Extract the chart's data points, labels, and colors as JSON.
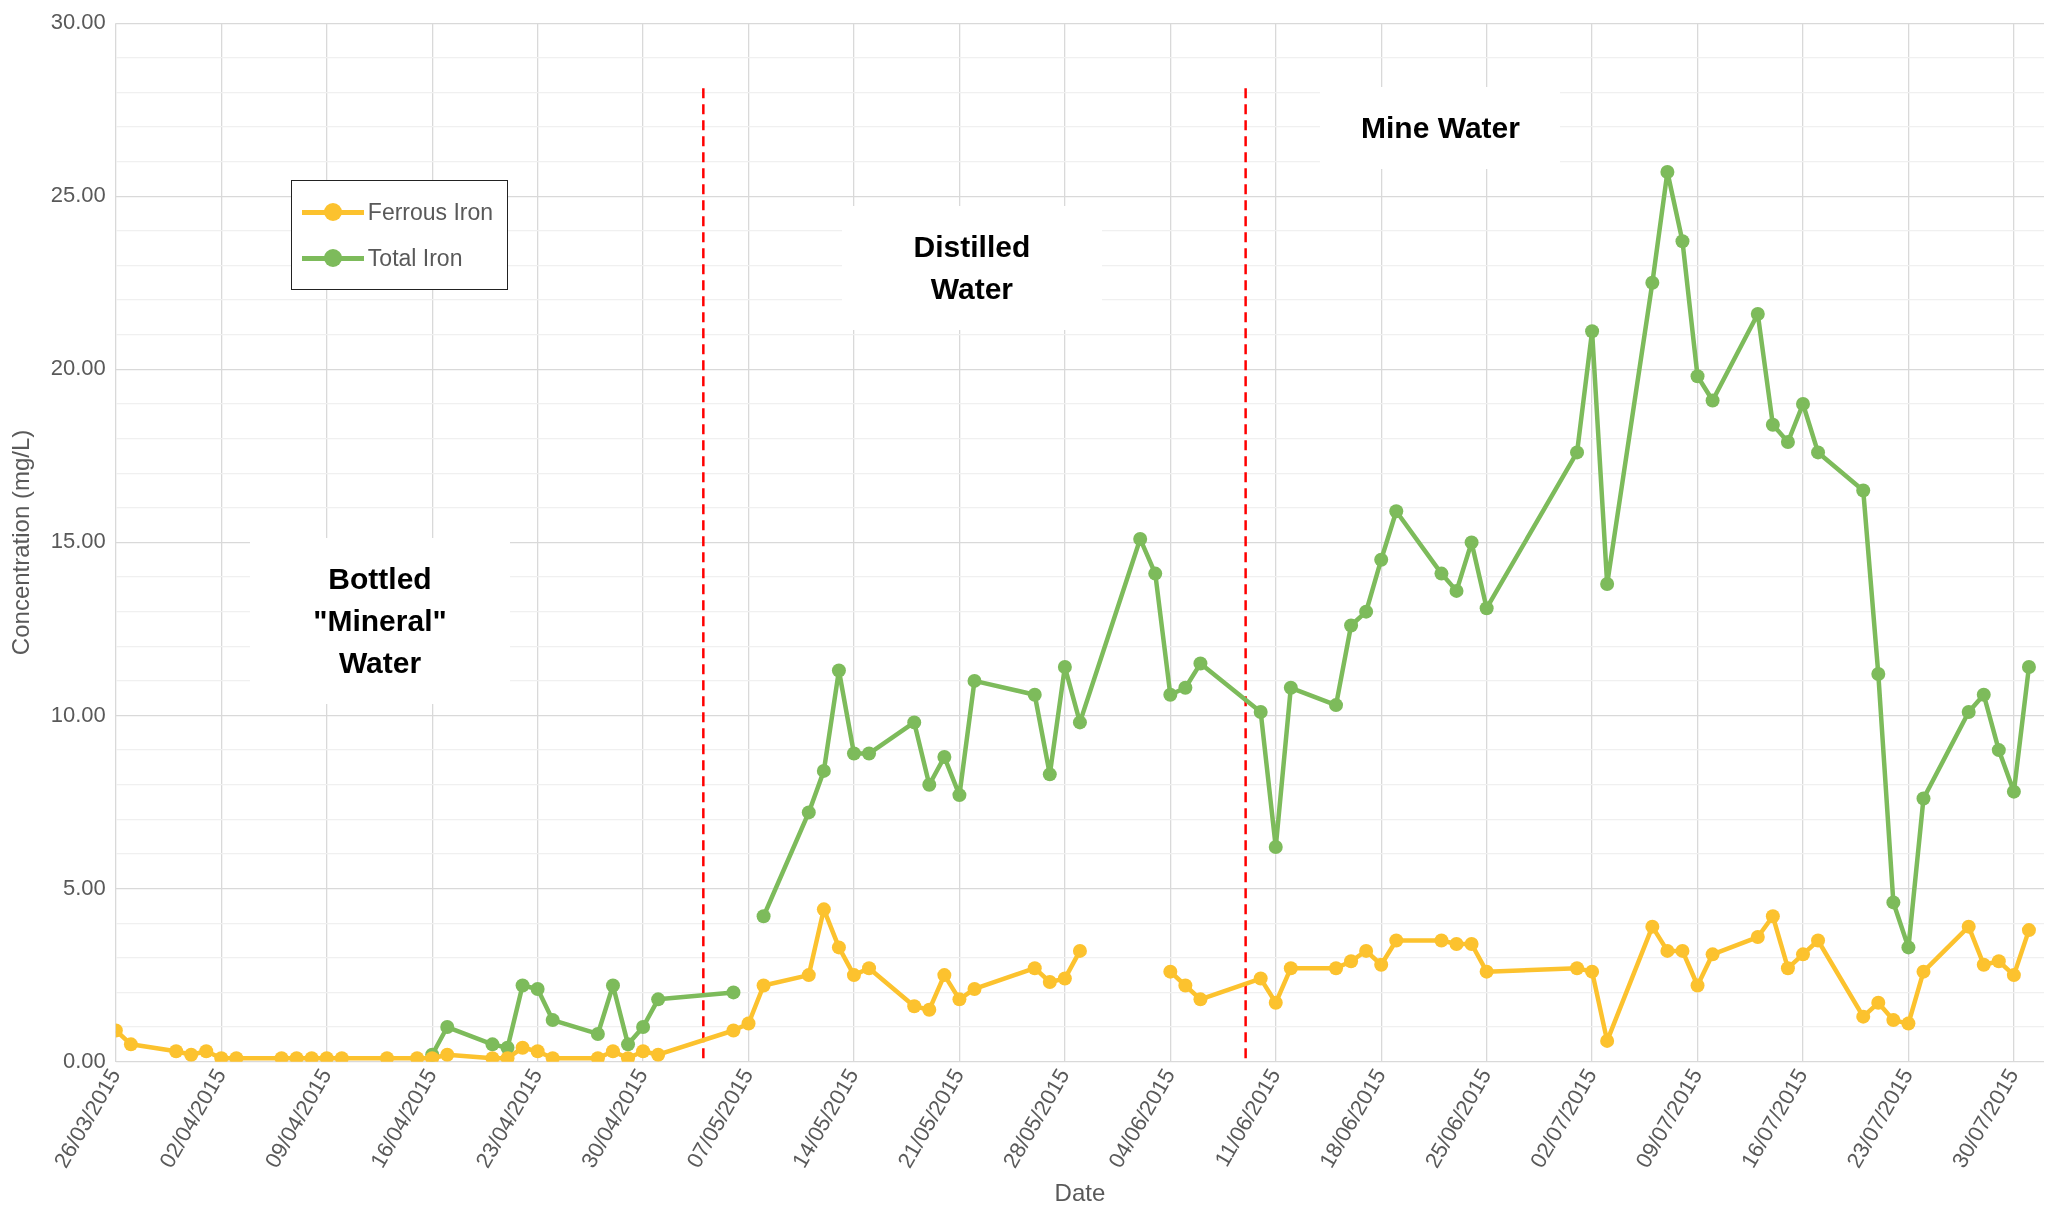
{
  "chart_data": {
    "type": "line",
    "xlabel": "Date",
    "ylabel": "Concentration (mg/L)",
    "xlim": [
      "2015-03-26",
      "2015-08-01"
    ],
    "xticks": [
      {
        "value": "2015-03-26",
        "label": "26/03/2015"
      },
      {
        "value": "2015-04-02",
        "label": "02/04/2015"
      },
      {
        "value": "2015-04-09",
        "label": "09/04/2015"
      },
      {
        "value": "2015-04-16",
        "label": "16/04/2015"
      },
      {
        "value": "2015-04-23",
        "label": "23/04/2015"
      },
      {
        "value": "2015-04-30",
        "label": "30/04/2015"
      },
      {
        "value": "2015-05-07",
        "label": "07/05/2015"
      },
      {
        "value": "2015-05-14",
        "label": "14/05/2015"
      },
      {
        "value": "2015-05-21",
        "label": "21/05/2015"
      },
      {
        "value": "2015-05-28",
        "label": "28/05/2015"
      },
      {
        "value": "2015-06-04",
        "label": "04/06/2015"
      },
      {
        "value": "2015-06-11",
        "label": "11/06/2015"
      },
      {
        "value": "2015-06-18",
        "label": "18/06/2015"
      },
      {
        "value": "2015-06-25",
        "label": "25/06/2015"
      },
      {
        "value": "2015-07-02",
        "label": "02/07/2015"
      },
      {
        "value": "2015-07-09",
        "label": "09/07/2015"
      },
      {
        "value": "2015-07-16",
        "label": "16/07/2015"
      },
      {
        "value": "2015-07-23",
        "label": "23/07/2015"
      },
      {
        "value": "2015-07-30",
        "label": "30/07/2015"
      }
    ],
    "ylim": [
      0,
      30
    ],
    "yticks": [
      {
        "value": 0,
        "label": "0.00"
      },
      {
        "value": 1,
        "label": null
      },
      {
        "value": 2,
        "label": null
      },
      {
        "value": 3,
        "label": null
      },
      {
        "value": 4,
        "label": null
      },
      {
        "value": 5,
        "label": "5.00"
      },
      {
        "value": 6,
        "label": null
      },
      {
        "value": 7,
        "label": null
      },
      {
        "value": 8,
        "label": null
      },
      {
        "value": 9,
        "label": null
      },
      {
        "value": 10,
        "label": "10.00"
      },
      {
        "value": 11,
        "label": null
      },
      {
        "value": 12,
        "label": null
      },
      {
        "value": 13,
        "label": null
      },
      {
        "value": 14,
        "label": null
      },
      {
        "value": 15,
        "label": "15.00"
      },
      {
        "value": 16,
        "label": null
      },
      {
        "value": 17,
        "label": null
      },
      {
        "value": 18,
        "label": null
      },
      {
        "value": 19,
        "label": null
      },
      {
        "value": 20,
        "label": "20.00"
      },
      {
        "value": 21,
        "label": null
      },
      {
        "value": 22,
        "label": null
      },
      {
        "value": 23,
        "label": null
      },
      {
        "value": 24,
        "label": null
      },
      {
        "value": 25,
        "label": "25.00"
      },
      {
        "value": 26,
        "label": null
      },
      {
        "value": 27,
        "label": null
      },
      {
        "value": 28,
        "label": null
      },
      {
        "value": 29,
        "label": null
      },
      {
        "value": 30,
        "label": "30.00"
      }
    ],
    "grid": true,
    "legend": "top left",
    "marker": "circle",
    "line_style": "solid",
    "ref_lines": [
      {
        "axis": "x",
        "value": "2015-05-04",
        "color": "#ff0000",
        "line_style": "dashed"
      },
      {
        "axis": "x",
        "value": "2015-06-09",
        "color": "#ff0000",
        "line_style": "dashed"
      }
    ],
    "annotations": [
      "Bottled\n\"Mineral\"\nWater",
      "Distilled\nWater",
      "Mine Water"
    ],
    "series": [
      {
        "name": "Ferrous Iron",
        "color": "#fcc22e",
        "x": [
          "2015-03-26",
          "2015-03-27",
          "2015-03-30",
          "2015-03-31",
          "2015-04-01",
          "2015-04-02",
          "2015-04-03",
          "2015-04-06",
          "2015-04-07",
          "2015-04-08",
          "2015-04-09",
          "2015-04-10",
          "2015-04-13",
          "2015-04-15",
          "2015-04-16",
          "2015-04-17",
          "2015-04-20",
          "2015-04-21",
          "2015-04-22",
          "2015-04-23",
          "2015-04-24",
          "2015-04-27",
          "2015-04-28",
          "2015-04-29",
          "2015-04-30",
          "2015-05-01",
          "2015-05-06",
          "2015-05-07",
          "2015-05-08",
          "2015-05-11",
          "2015-05-12",
          "2015-05-13",
          "2015-05-14",
          "2015-05-15",
          "2015-05-18",
          "2015-05-19",
          "2015-05-20",
          "2015-05-21",
          "2015-05-22",
          "2015-05-26",
          "2015-05-27",
          "2015-05-28",
          "2015-05-29",
          "2015-06-02",
          "2015-06-04",
          "2015-06-05",
          "2015-06-06",
          "2015-06-10",
          "2015-06-11",
          "2015-06-12",
          "2015-06-15",
          "2015-06-16",
          "2015-06-17",
          "2015-06-18",
          "2015-06-19",
          "2015-06-22",
          "2015-06-23",
          "2015-06-24",
          "2015-06-25",
          "2015-07-01",
          "2015-07-02",
          "2015-07-03",
          "2015-07-06",
          "2015-07-07",
          "2015-07-08",
          "2015-07-09",
          "2015-07-10",
          "2015-07-13",
          "2015-07-14",
          "2015-07-15",
          "2015-07-16",
          "2015-07-17",
          "2015-07-20",
          "2015-07-21",
          "2015-07-22",
          "2015-07-23",
          "2015-07-24",
          "2015-07-27",
          "2015-07-28",
          "2015-07-29",
          "2015-07-30",
          "2015-07-31"
        ],
        "values": [
          0.9,
          0.5,
          0.3,
          0.2,
          0.3,
          0.1,
          0.1,
          0.1,
          0.1,
          0.1,
          0.1,
          0.1,
          0.1,
          0.1,
          0.1,
          0.2,
          0.1,
          0.1,
          0.4,
          0.3,
          0.1,
          0.1,
          0.3,
          0.1,
          0.3,
          0.2,
          0.9,
          1.1,
          2.2,
          2.5,
          4.4,
          3.3,
          2.5,
          2.7,
          1.6,
          1.5,
          2.5,
          1.8,
          2.1,
          2.7,
          2.3,
          2.4,
          3.2,
          null,
          2.6,
          2.2,
          1.8,
          2.4,
          1.7,
          2.7,
          2.7,
          2.9,
          3.2,
          2.8,
          3.5,
          3.5,
          3.4,
          3.4,
          2.6,
          2.7,
          2.6,
          0.6,
          3.9,
          3.2,
          3.2,
          2.2,
          3.1,
          3.6,
          4.2,
          2.7,
          3.1,
          3.5,
          1.3,
          1.7,
          1.2,
          1.1,
          2.6,
          3.9,
          2.8,
          2.9,
          2.5,
          3.8
        ]
      },
      {
        "name": "Total Iron",
        "color": "#7dbb5b",
        "x": [
          "2015-04-16",
          "2015-04-17",
          "2015-04-20",
          "2015-04-21",
          "2015-04-22",
          "2015-04-23",
          "2015-04-24",
          "2015-04-27",
          "2015-04-28",
          "2015-04-29",
          "2015-04-30",
          "2015-05-01",
          "2015-05-06",
          "2015-05-07",
          "2015-05-08",
          "2015-05-11",
          "2015-05-12",
          "2015-05-13",
          "2015-05-14",
          "2015-05-15",
          "2015-05-18",
          "2015-05-19",
          "2015-05-20",
          "2015-05-21",
          "2015-05-22",
          "2015-05-26",
          "2015-05-27",
          "2015-05-28",
          "2015-05-29",
          "2015-06-02",
          "2015-06-03",
          "2015-06-04",
          "2015-06-05",
          "2015-06-06",
          "2015-06-10",
          "2015-06-11",
          "2015-06-12",
          "2015-06-15",
          "2015-06-16",
          "2015-06-17",
          "2015-06-18",
          "2015-06-19",
          "2015-06-22",
          "2015-06-23",
          "2015-06-24",
          "2015-06-25",
          "2015-07-01",
          "2015-07-02",
          "2015-07-03",
          "2015-07-06",
          "2015-07-07",
          "2015-07-08",
          "2015-07-09",
          "2015-07-10",
          "2015-07-13",
          "2015-07-14",
          "2015-07-15",
          "2015-07-16",
          "2015-07-17",
          "2015-07-20",
          "2015-07-21",
          "2015-07-22",
          "2015-07-23",
          "2015-07-24",
          "2015-07-27",
          "2015-07-28",
          "2015-07-29",
          "2015-07-30",
          "2015-07-31"
        ],
        "values": [
          0.2,
          1.0,
          0.5,
          0.4,
          2.2,
          2.1,
          1.2,
          0.8,
          2.2,
          0.5,
          1.0,
          1.8,
          2.0,
          null,
          4.2,
          7.2,
          8.4,
          11.3,
          8.9,
          8.9,
          9.8,
          8.0,
          8.8,
          7.7,
          11.0,
          10.6,
          8.3,
          11.4,
          9.8,
          15.1,
          14.1,
          10.6,
          10.8,
          11.5,
          10.1,
          6.2,
          10.8,
          10.3,
          12.6,
          13.0,
          14.5,
          15.9,
          14.1,
          13.6,
          15.0,
          13.1,
          17.6,
          21.1,
          13.8,
          22.5,
          25.7,
          23.7,
          19.8,
          19.1,
          21.6,
          18.4,
          17.9,
          19.0,
          17.6,
          16.5,
          11.2,
          4.6,
          3.3,
          7.6,
          10.1,
          10.6,
          9.0,
          7.8,
          11.4
        ]
      }
    ]
  }
}
